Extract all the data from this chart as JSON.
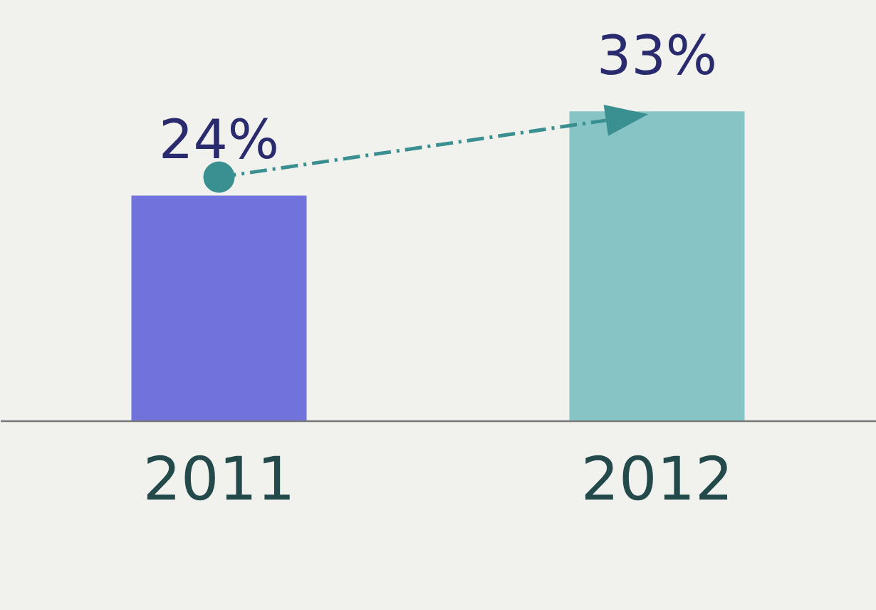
{
  "chart_data": {
    "type": "bar",
    "categories": [
      "2011",
      "2012"
    ],
    "values": [
      24,
      33
    ],
    "value_labels": [
      "24%",
      "33%"
    ],
    "colors": [
      "#7272dc",
      "#86c4c6"
    ]
  }
}
